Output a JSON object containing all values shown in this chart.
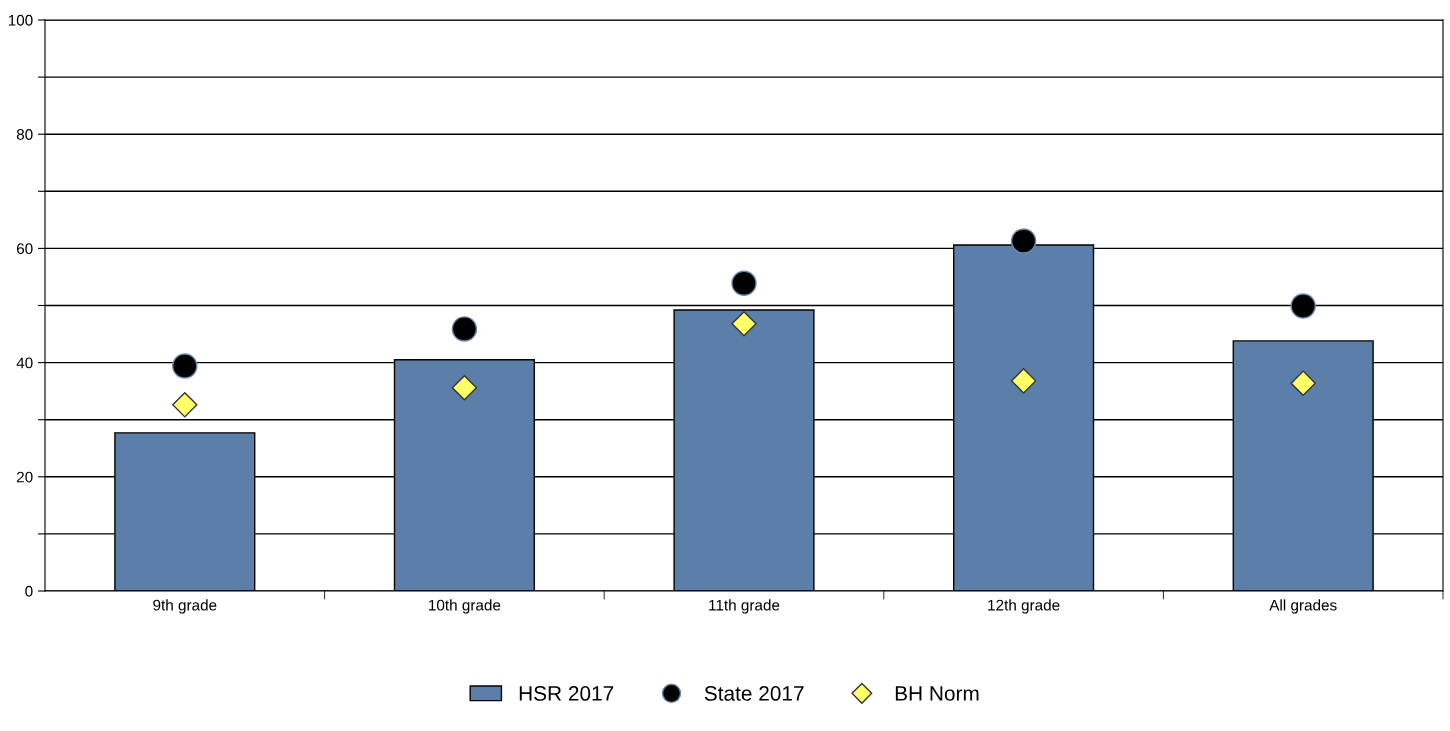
{
  "chart_data": {
    "type": "bar",
    "categories": [
      "9th grade",
      "10th grade",
      "11th grade",
      "12th grade",
      "All grades"
    ],
    "series": [
      {
        "name": "HSR 2017",
        "color": "#5b7fa8",
        "values": [
          27.7,
          40.5,
          49.2,
          60.6,
          43.8
        ]
      },
      {
        "name": "State 2017",
        "type": "scatter",
        "marker": "circle",
        "color": "#000000",
        "values": [
          39.4,
          45.9,
          53.9,
          61.3,
          49.9
        ]
      },
      {
        "name": "BH Norm",
        "type": "scatter",
        "marker": "diamond",
        "color": "#ffff66",
        "values": [
          32.6,
          35.6,
          46.8,
          36.8,
          36.4
        ]
      }
    ],
    "ylim": [
      0,
      100
    ],
    "yticks": [
      0,
      {
        "value": 10,
        "label": null
      },
      20,
      {
        "value": 30,
        "label": null
      },
      40,
      {
        "value": 50,
        "label": null
      },
      60,
      {
        "value": 70,
        "label": null
      },
      80,
      {
        "value": 90,
        "label": null
      },
      100
    ],
    "grid": "y",
    "legend": "bottom"
  }
}
